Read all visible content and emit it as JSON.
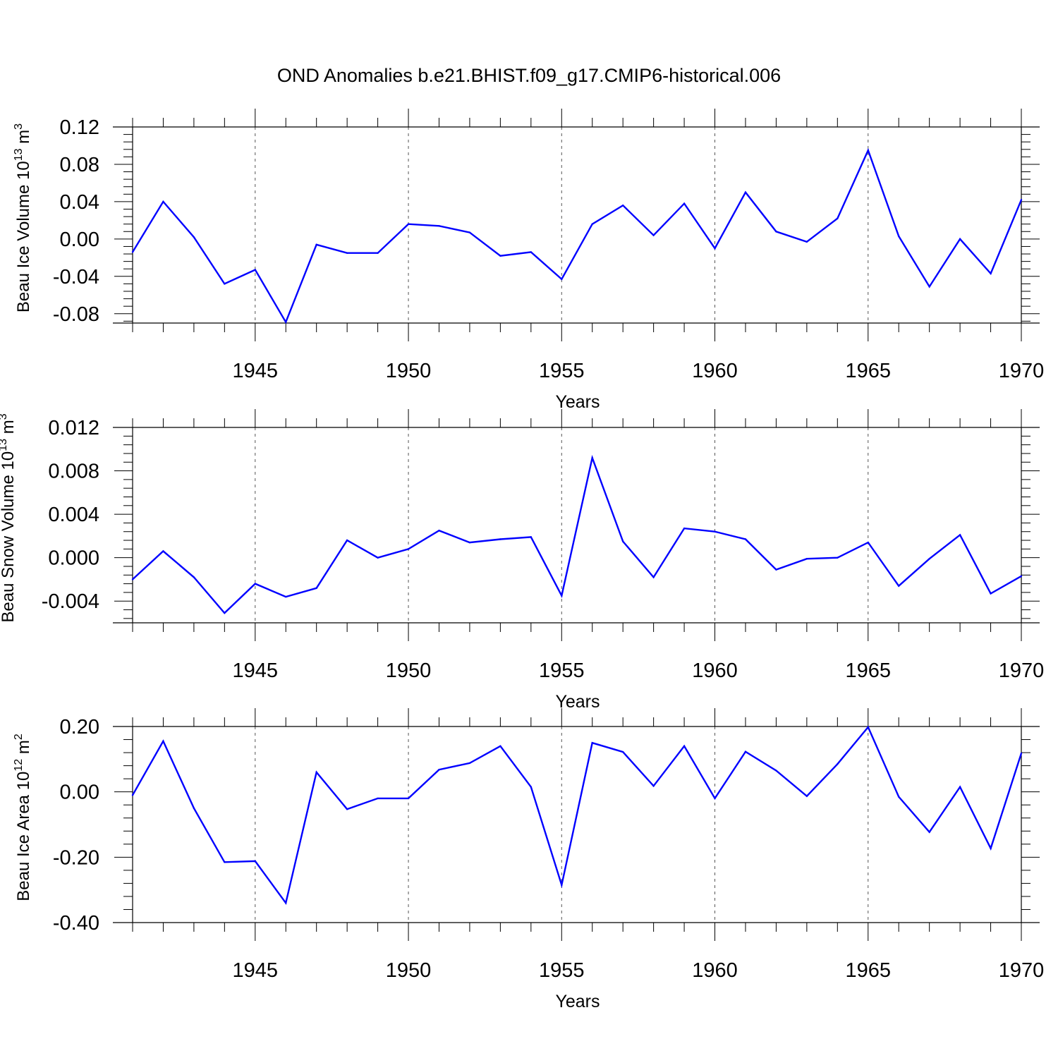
{
  "figure": {
    "title": "OND Anomalies b.e21.BHIST.f09_g17.CMIP6-historical.006"
  },
  "chart_data": [
    {
      "type": "line",
      "ylabel_text": "Beau Ice Volume 10",
      "ylabel_exp": "13",
      "ylabel_unit": " m",
      "ylabel_unit_exp": "3",
      "xlabel": "Years",
      "xlim": [
        1941,
        1970
      ],
      "ylim": [
        -0.09,
        0.12
      ],
      "yticks": [
        -0.08,
        -0.04,
        0.0,
        0.04,
        0.08,
        0.12
      ],
      "ytick_labels": [
        "-0.08",
        "-0.04",
        "0.00",
        "0.04",
        "0.08",
        "0.12"
      ],
      "xticks": [
        1945,
        1950,
        1955,
        1960,
        1965,
        1970
      ],
      "xtick_labels": [
        "1945",
        "1950",
        "1955",
        "1960",
        "1965",
        "1970"
      ],
      "grid_x": [
        1945,
        1950,
        1955,
        1960,
        1965
      ],
      "color": "#0000ff",
      "series": [
        {
          "name": "Beau Ice Volume",
          "x": [
            1941,
            1942,
            1943,
            1944,
            1945,
            1946,
            1947,
            1948,
            1949,
            1950,
            1951,
            1952,
            1953,
            1954,
            1955,
            1956,
            1957,
            1958,
            1959,
            1960,
            1961,
            1962,
            1963,
            1964,
            1965,
            1966,
            1967,
            1968,
            1969,
            1970
          ],
          "values": [
            -0.014,
            0.04,
            0.002,
            -0.048,
            -0.033,
            -0.089,
            -0.006,
            -0.015,
            -0.015,
            0.016,
            0.014,
            0.007,
            -0.018,
            -0.014,
            -0.043,
            0.016,
            0.036,
            0.004,
            0.038,
            -0.01,
            0.05,
            0.008,
            -0.003,
            0.022,
            0.095,
            0.003,
            -0.051,
            0.0,
            -0.037,
            0.042
          ]
        }
      ]
    },
    {
      "type": "line",
      "ylabel_text": "Beau Snow Volume 10",
      "ylabel_exp": "13",
      "ylabel_unit": " m",
      "ylabel_unit_exp": "3",
      "xlabel": "Years",
      "xlim": [
        1941,
        1970
      ],
      "ylim": [
        -0.006,
        0.012
      ],
      "yticks": [
        -0.004,
        0.0,
        0.004,
        0.008,
        0.012
      ],
      "ytick_labels": [
        "-0.004",
        "0.000",
        "0.004",
        "0.008",
        "0.012"
      ],
      "xticks": [
        1945,
        1950,
        1955,
        1960,
        1965,
        1970
      ],
      "xtick_labels": [
        "1945",
        "1950",
        "1955",
        "1960",
        "1965",
        "1970"
      ],
      "grid_x": [
        1945,
        1950,
        1955,
        1960,
        1965
      ],
      "color": "#0000ff",
      "series": [
        {
          "name": "Beau Snow Volume",
          "x": [
            1941,
            1942,
            1943,
            1944,
            1945,
            1946,
            1947,
            1948,
            1949,
            1950,
            1951,
            1952,
            1953,
            1954,
            1955,
            1956,
            1957,
            1958,
            1959,
            1960,
            1961,
            1962,
            1963,
            1964,
            1965,
            1966,
            1967,
            1968,
            1969,
            1970
          ],
          "values": [
            -0.002,
            0.0006,
            -0.0018,
            -0.0051,
            -0.0024,
            -0.0036,
            -0.0028,
            0.0016,
            0.0,
            0.0008,
            0.0025,
            0.0014,
            0.0017,
            0.0019,
            -0.0035,
            0.0092,
            0.0015,
            -0.0018,
            0.0027,
            0.0024,
            0.0017,
            -0.0011,
            -0.0001,
            0.0,
            0.0014,
            -0.0026,
            -0.0001,
            0.0021,
            -0.0033,
            -0.0017
          ]
        }
      ]
    },
    {
      "type": "line",
      "ylabel_text": "Beau Ice Area 10",
      "ylabel_exp": "12",
      "ylabel_unit": " m",
      "ylabel_unit_exp": "2",
      "xlabel": "Years",
      "xlim": [
        1941,
        1970
      ],
      "ylim": [
        -0.4,
        0.2
      ],
      "yticks": [
        -0.4,
        -0.2,
        0.0,
        0.2
      ],
      "ytick_labels": [
        "-0.40",
        "-0.20",
        "0.00",
        "0.20"
      ],
      "xticks": [
        1945,
        1950,
        1955,
        1960,
        1965,
        1970
      ],
      "xtick_labels": [
        "1945",
        "1950",
        "1955",
        "1960",
        "1965",
        "1970"
      ],
      "grid_x": [
        1945,
        1950,
        1955,
        1960,
        1965
      ],
      "color": "#0000ff",
      "series": [
        {
          "name": "Beau Ice Area",
          "x": [
            1941,
            1942,
            1943,
            1944,
            1945,
            1946,
            1947,
            1948,
            1949,
            1950,
            1951,
            1952,
            1953,
            1954,
            1955,
            1956,
            1957,
            1958,
            1959,
            1960,
            1961,
            1962,
            1963,
            1964,
            1965,
            1966,
            1967,
            1968,
            1969,
            1970
          ],
          "values": [
            -0.01,
            0.155,
            -0.05,
            -0.215,
            -0.212,
            -0.34,
            0.06,
            -0.053,
            -0.02,
            -0.02,
            0.068,
            0.088,
            0.14,
            0.015,
            -0.285,
            0.15,
            0.122,
            0.018,
            0.14,
            -0.02,
            0.123,
            0.065,
            -0.013,
            0.085,
            0.198,
            -0.015,
            -0.123,
            0.015,
            -0.173,
            0.118
          ]
        }
      ]
    }
  ]
}
